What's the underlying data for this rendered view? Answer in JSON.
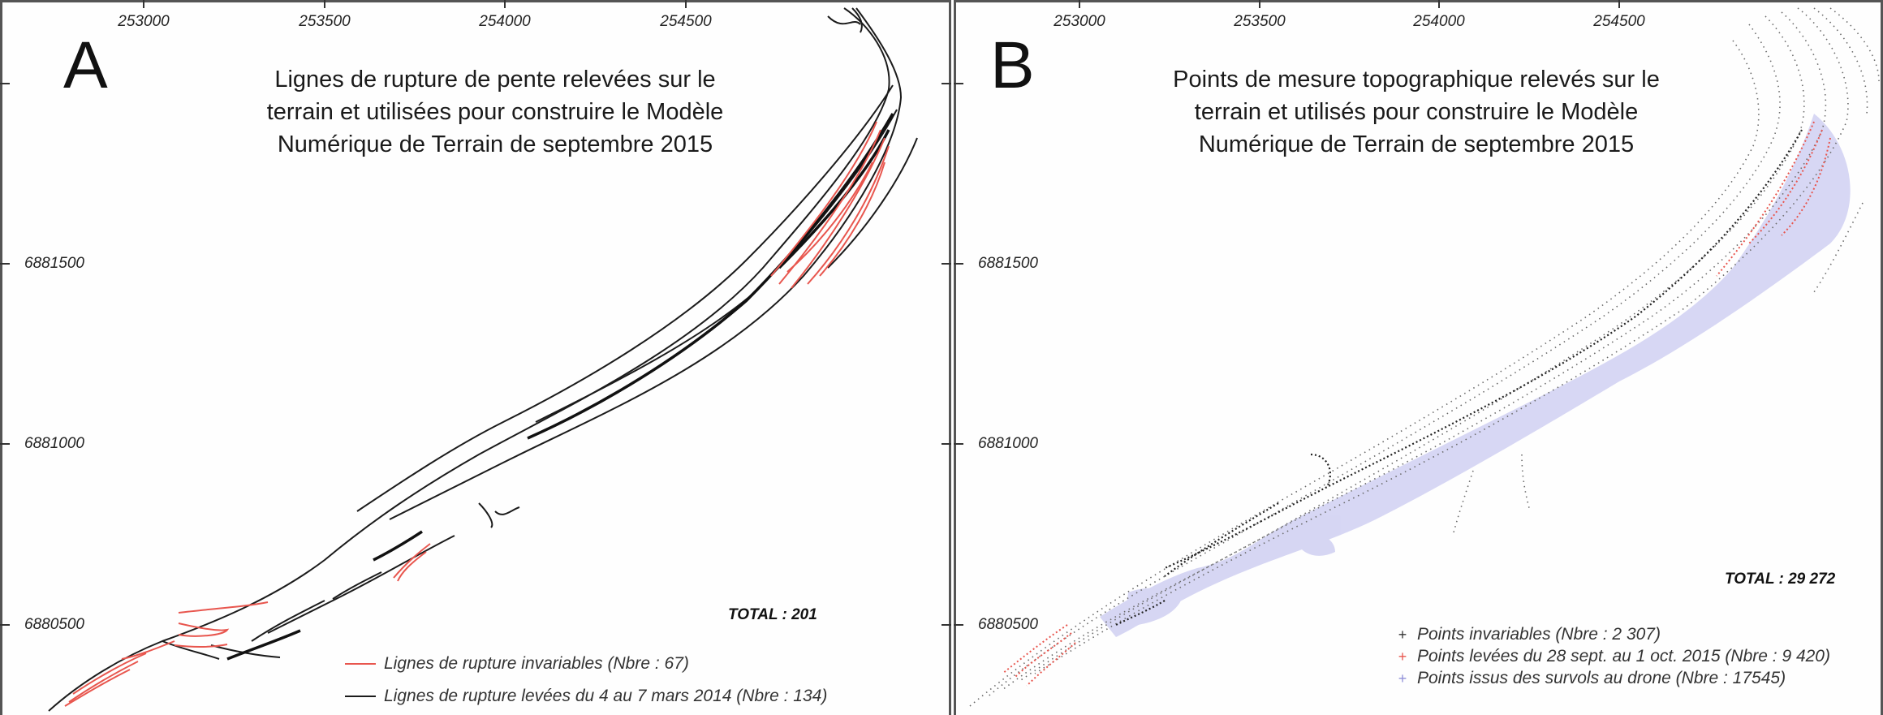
{
  "panel_a": {
    "letter": "A",
    "title_lines": [
      "Lignes de rupture de pente relevées sur le",
      "terrain et utilisées pour construire le Modèle",
      "Numérique de Terrain de septembre 2015"
    ],
    "total": "TOTAL : 201",
    "legend": [
      {
        "label": "Lignes de rupture invariables (Nbre : 67)",
        "color": "#e8564e"
      },
      {
        "label": "Lignes de rupture levées du 4 au 7 mars 2014 (Nbre : 134)",
        "color": "#1b1b1b"
      }
    ]
  },
  "panel_b": {
    "letter": "B",
    "title_lines": [
      "Points de mesure topographique relevés sur le",
      "terrain et utilisés pour construire le Modèle",
      "Numérique de Terrain de septembre 2015"
    ],
    "total": "TOTAL : 29 272",
    "legend": [
      {
        "label": "Points invariables (Nbre : 2 307)",
        "color": "#333333",
        "mark": "+"
      },
      {
        "label": "Points levées du 28 sept. au 1 oct. 2015 (Nbre : 9 420)",
        "color": "#e8564e",
        "mark": "+"
      },
      {
        "label": "Points issus des survols au drone (Nbre : 17545)",
        "color": "#8f8fd8",
        "mark": "+"
      }
    ]
  },
  "axes": {
    "x_ticks": [
      "253000",
      "253500",
      "254000",
      "254500"
    ],
    "y_ticks": [
      "6881500",
      "6881000",
      "6880500"
    ]
  },
  "colors": {
    "invariable_red": "#e8564e",
    "survey_black": "#1b1b1b",
    "drone_blue": "#c9c9f0",
    "frame": "#555555"
  }
}
